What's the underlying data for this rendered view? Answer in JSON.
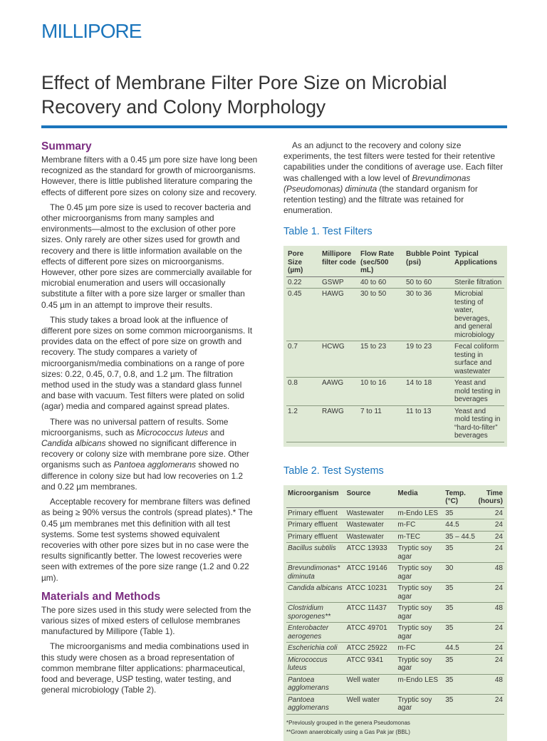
{
  "header": {
    "logo": "MILLIPORE",
    "title": "Effect of Membrane Filter Pore Size on Microbial Recovery and Colony Morphology"
  },
  "summary": {
    "heading": "Summary",
    "paragraphs": [
      [
        "Membrane filters with a 0.45 µm pore size have long been recognized as the standard for growth of microorganisms. However, there is little published literature comparing the effects of different pore sizes on colony size and recovery."
      ],
      [
        "The 0.45 µm pore size is used to recover bacteria and other microorganisms from many samples and environments—almost to the exclusion of other pore sizes. Only rarely are other sizes used for growth and recovery and there is little information available on the effects of different pore sizes on microorganisms. However, other pore sizes are commercially available for microbial enumeration and users will occasionally substitute a filter with a pore size larger or smaller than 0.45 µm in an attempt to improve their results."
      ],
      [
        "This study takes a broad look at the influence of different pore sizes on some common microorganisms. It provides data on the effect of pore size on growth and recovery. The study compares a variety of microorganism/media combinations on a range of pore sizes: 0.22, 0.45, 0.7, 0.8, and 1.2 µm. The filtration method used in the study was a standard glass funnel and base with vacuum. Test filters were plated on solid (agar) media and compared against spread plates."
      ],
      [
        "There was no universal pattern of results. Some microorganisms, such as ",
        "Micrococcus luteus",
        " and ",
        "Candida albicans",
        " showed no significant difference in recovery or colony size with membrane pore size. Other organisms such as ",
        "Pantoea agglomerans",
        " showed no difference in colony size but had low recoveries on 1.2 and 0.22 µm membranes."
      ],
      [
        "Acceptable recovery for membrane filters was defined as being ≥ 90% versus the controls (spread plates).* The 0.45 µm membranes met this definition with all test systems. Some test systems showed equivalent recoveries with other pore sizes but in no case were the results significantly better. The lowest recoveries were seen with extremes of the pore size range (1.2 and 0.22 µm)."
      ]
    ]
  },
  "methods": {
    "heading": "Materials and Methods",
    "paragraphs": [
      [
        "The pore sizes used in this study were selected from the various sizes of mixed esters of cellulose membranes manufactured by Millipore (Table 1)."
      ],
      [
        "The microorganisms and media combinations used in this study were chosen as a broad representation of common membrane filter applications: pharmaceutical, food and beverage, USP testing, water testing, and general microbiology (Table 2)."
      ],
      [
        "As an adjunct to the recovery and colony size experiments, the test filters were tested for their retentive capabilities under the conditions of average use. Each filter was challenged with a low level of ",
        "Brevundimonas (Pseudomonas) diminuta",
        " (the standard organism for retention testing) and the filtrate was retained for enumeration."
      ]
    ]
  },
  "table1": {
    "title": "Table 1. Test Filters",
    "columns": [
      "Pore Size (µm)",
      "Millipore filter code",
      "Flow Rate (sec/500 mL)",
      "Bubble Point (psi)",
      "Typical Applications"
    ],
    "rows": [
      [
        "0.22",
        "GSWP",
        "40 to 60",
        "50 to 60",
        "Sterile filtration"
      ],
      [
        "0.45",
        "HAWG",
        "30 to 50",
        "30 to 36",
        "Microbial testing of water, beverages, and general microbiology"
      ],
      [
        "0.7",
        "HCWG",
        "15 to 23",
        "19 to 23",
        "Fecal coliform testing in surface and wastewater"
      ],
      [
        "0.8",
        "AAWG",
        "10 to 16",
        "14 to 18",
        "Yeast and mold testing in beverages"
      ],
      [
        "1.2",
        "RAWG",
        "7 to 11",
        "11 to 13",
        "Yeast and mold testing in “hard-to-filter” beverages"
      ]
    ]
  },
  "table2": {
    "title": "Table 2. Test Systems",
    "columns": [
      "Microorganism",
      "Source",
      "Media",
      "Temp. (°C)",
      "Time (hours)"
    ],
    "rows": [
      [
        "Primary effluent",
        "Wastewater",
        "m-Endo LES",
        "35",
        "24"
      ],
      [
        "Primary effluent",
        "Wastewater",
        "m-FC",
        "44.5",
        "24"
      ],
      [
        "Primary effluent",
        "Wastewater",
        "m-TEC",
        "35 – 44.5",
        "24"
      ],
      [
        "Bacillus subtilis",
        "ATCC 13933",
        "Tryptic soy agar",
        "35",
        "24"
      ],
      [
        "Brevundimonas* diminuta",
        "ATCC 19146",
        "Tryptic soy agar",
        "30",
        "48"
      ],
      [
        "Candida albicans",
        "ATCC 10231",
        "Tryptic soy agar",
        "35",
        "24"
      ],
      [
        "Clostridium sporogenes**",
        "ATCC 11437",
        "Tryptic soy agar",
        "35",
        "48"
      ],
      [
        "Enterobacter aerogenes",
        "ATCC 49701",
        "Tryptic soy agar",
        "35",
        "24"
      ],
      [
        "Escherichia coli",
        "ATCC 25922",
        "m-FC",
        "44.5",
        "24"
      ],
      [
        "Micrococcus luteus",
        "ATCC 9341",
        "Tryptic soy agar",
        "35",
        "24"
      ],
      [
        "Pantoea agglomerans",
        "Well water",
        "m-Endo LES",
        "35",
        "48"
      ],
      [
        "Pantoea agglomerans",
        "Well water",
        "Tryptic soy agar",
        "35",
        "24"
      ]
    ],
    "footnotes": [
      "*Previously grouped in the genera Pseudomonas",
      "**Grown anaerobically using a Gas Pak jar (BBL)"
    ]
  }
}
